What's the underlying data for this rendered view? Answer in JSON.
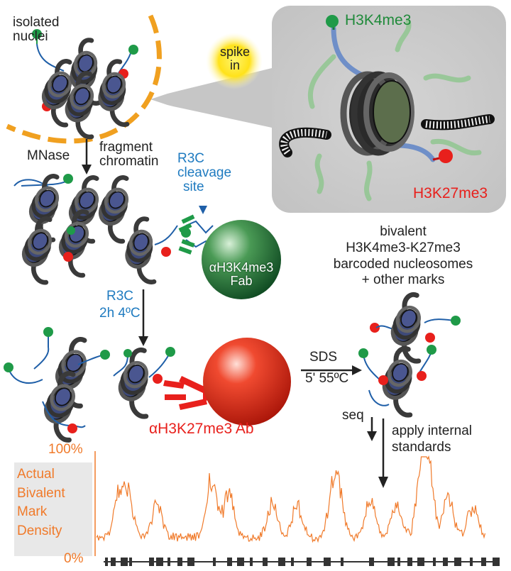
{
  "labels": {
    "isolated_nuclei": [
      "isolated",
      "nuclei"
    ],
    "spike_in": [
      "spike",
      "in"
    ],
    "h3k4me3": "H3K4me3",
    "h3k27me3": "H3K27me3",
    "mnase": "MNase",
    "fragment_chromatin": [
      "fragment",
      "chromatin"
    ],
    "r3c_cleavage_site": [
      "R3C",
      "cleavage",
      "site"
    ],
    "fab_label": [
      "αH3K4me3",
      "Fab"
    ],
    "bivalent_desc": [
      "bivalent",
      "H3K4me3-K27me3",
      "barcoded nucleosomes",
      "+ other marks"
    ],
    "r3c_conditions": [
      "R3C",
      "2h 4ºC"
    ],
    "ab_label": "αH3K27me3 Ab",
    "sds_conditions": [
      "SDS",
      "5' 55ºC"
    ],
    "seq": "seq",
    "apply_standards": [
      "apply internal",
      "standards"
    ]
  },
  "track": {
    "y_top": "100%",
    "y_bottom": "0%",
    "title": [
      "Actual",
      "Bivalent",
      "Mark",
      "Density"
    ]
  },
  "colors": {
    "green_mark": "#1f9a48",
    "red_mark": "#e8201c",
    "dna_blue": "#1f5fa8",
    "orange_nucleus": "#f0a020",
    "track_orange": "#f07a2a",
    "label_blue": "#1f7bc0"
  }
}
